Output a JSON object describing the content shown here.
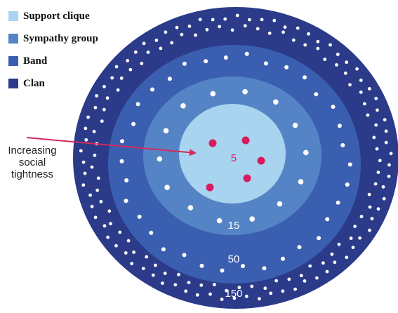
{
  "legend": [
    {
      "label": "Support clique",
      "color": "#a8d4ef"
    },
    {
      "label": "Sympathy group",
      "color": "#5584c6"
    },
    {
      "label": "Band",
      "color": "#3b5fb0"
    },
    {
      "label": "Clan",
      "color": "#2c3a8a"
    }
  ],
  "rings": [
    {
      "name": "Clan",
      "size_label": "150",
      "color": "#2c3a8a"
    },
    {
      "name": "Band",
      "size_label": "50",
      "color": "#3b5fb0"
    },
    {
      "name": "Sympathy group",
      "size_label": "15",
      "color": "#5584c6"
    },
    {
      "name": "Support clique",
      "size_label": "5",
      "color": "#a8d4ef"
    }
  ],
  "annotation": {
    "lines": [
      "Increasing",
      "social",
      "tightness"
    ],
    "arrow_color": "#d42a5a"
  },
  "colors": {
    "dot_white": "#ffffff",
    "dot_core": "#d81b60",
    "label_core": "#d81b60",
    "label_light": "#ffffff"
  }
}
